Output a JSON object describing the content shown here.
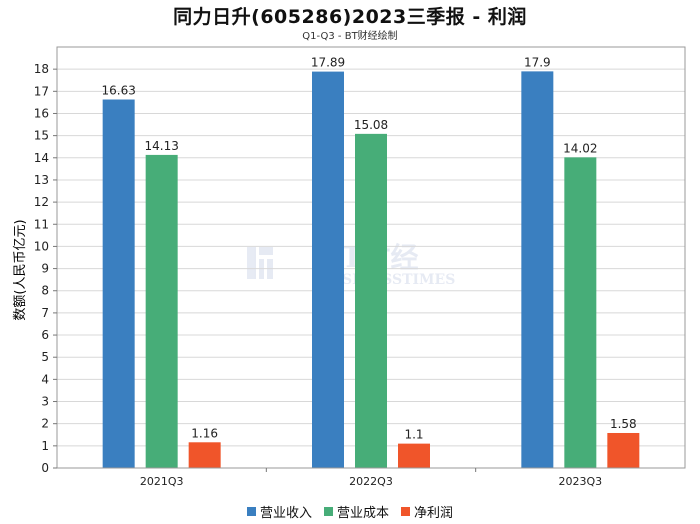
{
  "chart_data": {
    "type": "bar",
    "title": "同力日升(605286)2023三季报 - 利润",
    "subtitle": "Q1-Q3 - BT财经绘制",
    "ylabel": "数额(人民币亿元)",
    "xlabel": "",
    "ylim": [
      0,
      19
    ],
    "yticks": [
      0,
      1,
      2,
      3,
      4,
      5,
      6,
      7,
      8,
      9,
      10,
      11,
      12,
      13,
      14,
      15,
      16,
      17,
      18
    ],
    "categories": [
      "2021Q3",
      "2022Q3",
      "2023Q3"
    ],
    "series": [
      {
        "name": "营业收入",
        "color": "#3a7fc0",
        "values": [
          16.63,
          17.89,
          17.9
        ],
        "labels": [
          "16.63",
          "17.89",
          "17.9"
        ]
      },
      {
        "name": "营业成本",
        "color": "#47ad78",
        "values": [
          14.13,
          15.08,
          14.02
        ],
        "labels": [
          "14.13",
          "15.08",
          "14.02"
        ]
      },
      {
        "name": "净利润",
        "color": "#f0552a",
        "values": [
          1.16,
          1.1,
          1.58
        ],
        "labels": [
          "1.16",
          "1.1",
          "1.58"
        ]
      }
    ],
    "grid": true,
    "legend_position": "bottom"
  },
  "watermark": {
    "main": "BT财经",
    "sub": "BUSINESSTIMES"
  }
}
